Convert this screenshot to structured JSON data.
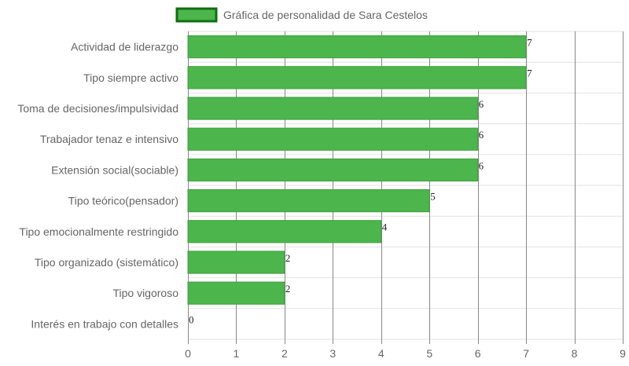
{
  "chart_data": {
    "type": "bar",
    "orientation": "horizontal",
    "legend": {
      "position": "top",
      "entries": [
        "Gráfica de personalidad de Sara Cestelos"
      ]
    },
    "categories": [
      "Actividad de liderazgo",
      "Tipo siempre activo",
      "Toma de decisiones/impulsividad",
      "Trabajador tenaz e intensivo",
      "Extensión social(sociable)",
      "Tipo teórico(pensador)",
      "Tipo emocionalmente restringido",
      "Tipo organizado (sistemático)",
      "Tipo vigoroso",
      "Interés en trabajo con detalles"
    ],
    "series": [
      {
        "name": "Gráfica de personalidad de Sara Cestelos",
        "values": [
          7,
          7,
          6,
          6,
          6,
          5,
          4,
          2,
          2,
          0
        ]
      }
    ],
    "xlim": [
      0,
      9
    ],
    "x_ticks": [
      0,
      1,
      2,
      3,
      4,
      5,
      6,
      7,
      8,
      9
    ],
    "data_labels": true,
    "grid": true,
    "colors": {
      "bar_fill": "#4cb54c",
      "bar_border": "#3f9f3f",
      "legend_fill": "#4cb54c",
      "legend_border": "#0f6e0f",
      "grid_vertical": "#888888",
      "grid_horizontal": "#e2e2e2",
      "text": "#666666"
    }
  }
}
